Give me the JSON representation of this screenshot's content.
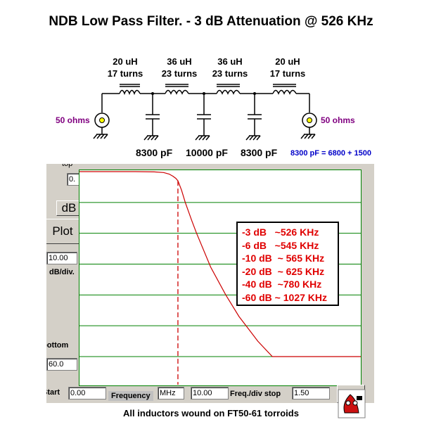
{
  "title": "NDB Low Pass Filter. - 3 dB Attenuation @ 526 KHz",
  "schematic": {
    "inductors": [
      {
        "value": "20 uH",
        "turns": "17 turns"
      },
      {
        "value": "36 uH",
        "turns": "23 turns"
      },
      {
        "value": "36 uH",
        "turns": "23 turns"
      },
      {
        "value": "20 uH",
        "turns": "17 turns"
      }
    ],
    "capacitors": [
      "8300 pF",
      "10000 pF",
      "8300 pF"
    ],
    "source_label": "50 ohms",
    "load_label": "50 ohms",
    "cap_note": "8300 pF = 6800 + 1500"
  },
  "panel": {
    "top_label": "top",
    "top_value": "0.",
    "db_button": "dB",
    "plot_button": "Plot",
    "db_div_value": "10.00",
    "db_div_label": "dB/div.",
    "bottom_label": "bottom",
    "bottom_value": "60.0",
    "start_label": "Start",
    "start_value": "0.00",
    "frequency_label": "Frequency",
    "unit_value": "MHz",
    "freq_div_value": "10.00",
    "freq_div_label": "Freq./div stop",
    "stop_value": "1.50"
  },
  "legend": [
    "-3 dB   ~526 KHz",
    "-6 dB   ~545 KHz",
    "-10 dB  ~ 565 KHz",
    "-20 dB  ~ 625 KHz",
    "-40 dB  ~780 KHz",
    "-60 dB ~ 1027 KHz"
  ],
  "footer": "All inductors wound on FT50-61 torroids",
  "colors": {
    "plot_grid": "#008000",
    "plot_border": "#008000",
    "response_curve": "#cc0000",
    "cutoff_marker": "#cc0000",
    "legend_text": "#e00000",
    "ohms_text": "#800080",
    "note_text": "#0000c8",
    "panel_bg": "#d4d0c8"
  },
  "chart_data": {
    "type": "line",
    "xlabel": "Frequency",
    "ylabel": "",
    "x_units": "MHz",
    "xlim": [
      0,
      1.5
    ],
    "ylim": [
      -60,
      0
    ],
    "grid": true,
    "cutoff_marker_x": 0.526,
    "series": [
      {
        "x": [
          0,
          0.1,
          0.2,
          0.3,
          0.4,
          0.45,
          0.48,
          0.5,
          0.515,
          0.526,
          0.545,
          0.565,
          0.6,
          0.625,
          0.7,
          0.78,
          0.85,
          0.9,
          0.95,
          1.027,
          1.1,
          1.2,
          1.3,
          1.4,
          1.5
        ],
        "y": [
          0,
          0,
          0,
          0,
          -0.1,
          -0.3,
          -0.8,
          -1.5,
          -2.2,
          -3,
          -6,
          -10,
          -16,
          -20,
          -31,
          -40,
          -47,
          -51,
          -55,
          -60,
          -60,
          -60,
          -60,
          -60,
          -60
        ]
      }
    ]
  }
}
